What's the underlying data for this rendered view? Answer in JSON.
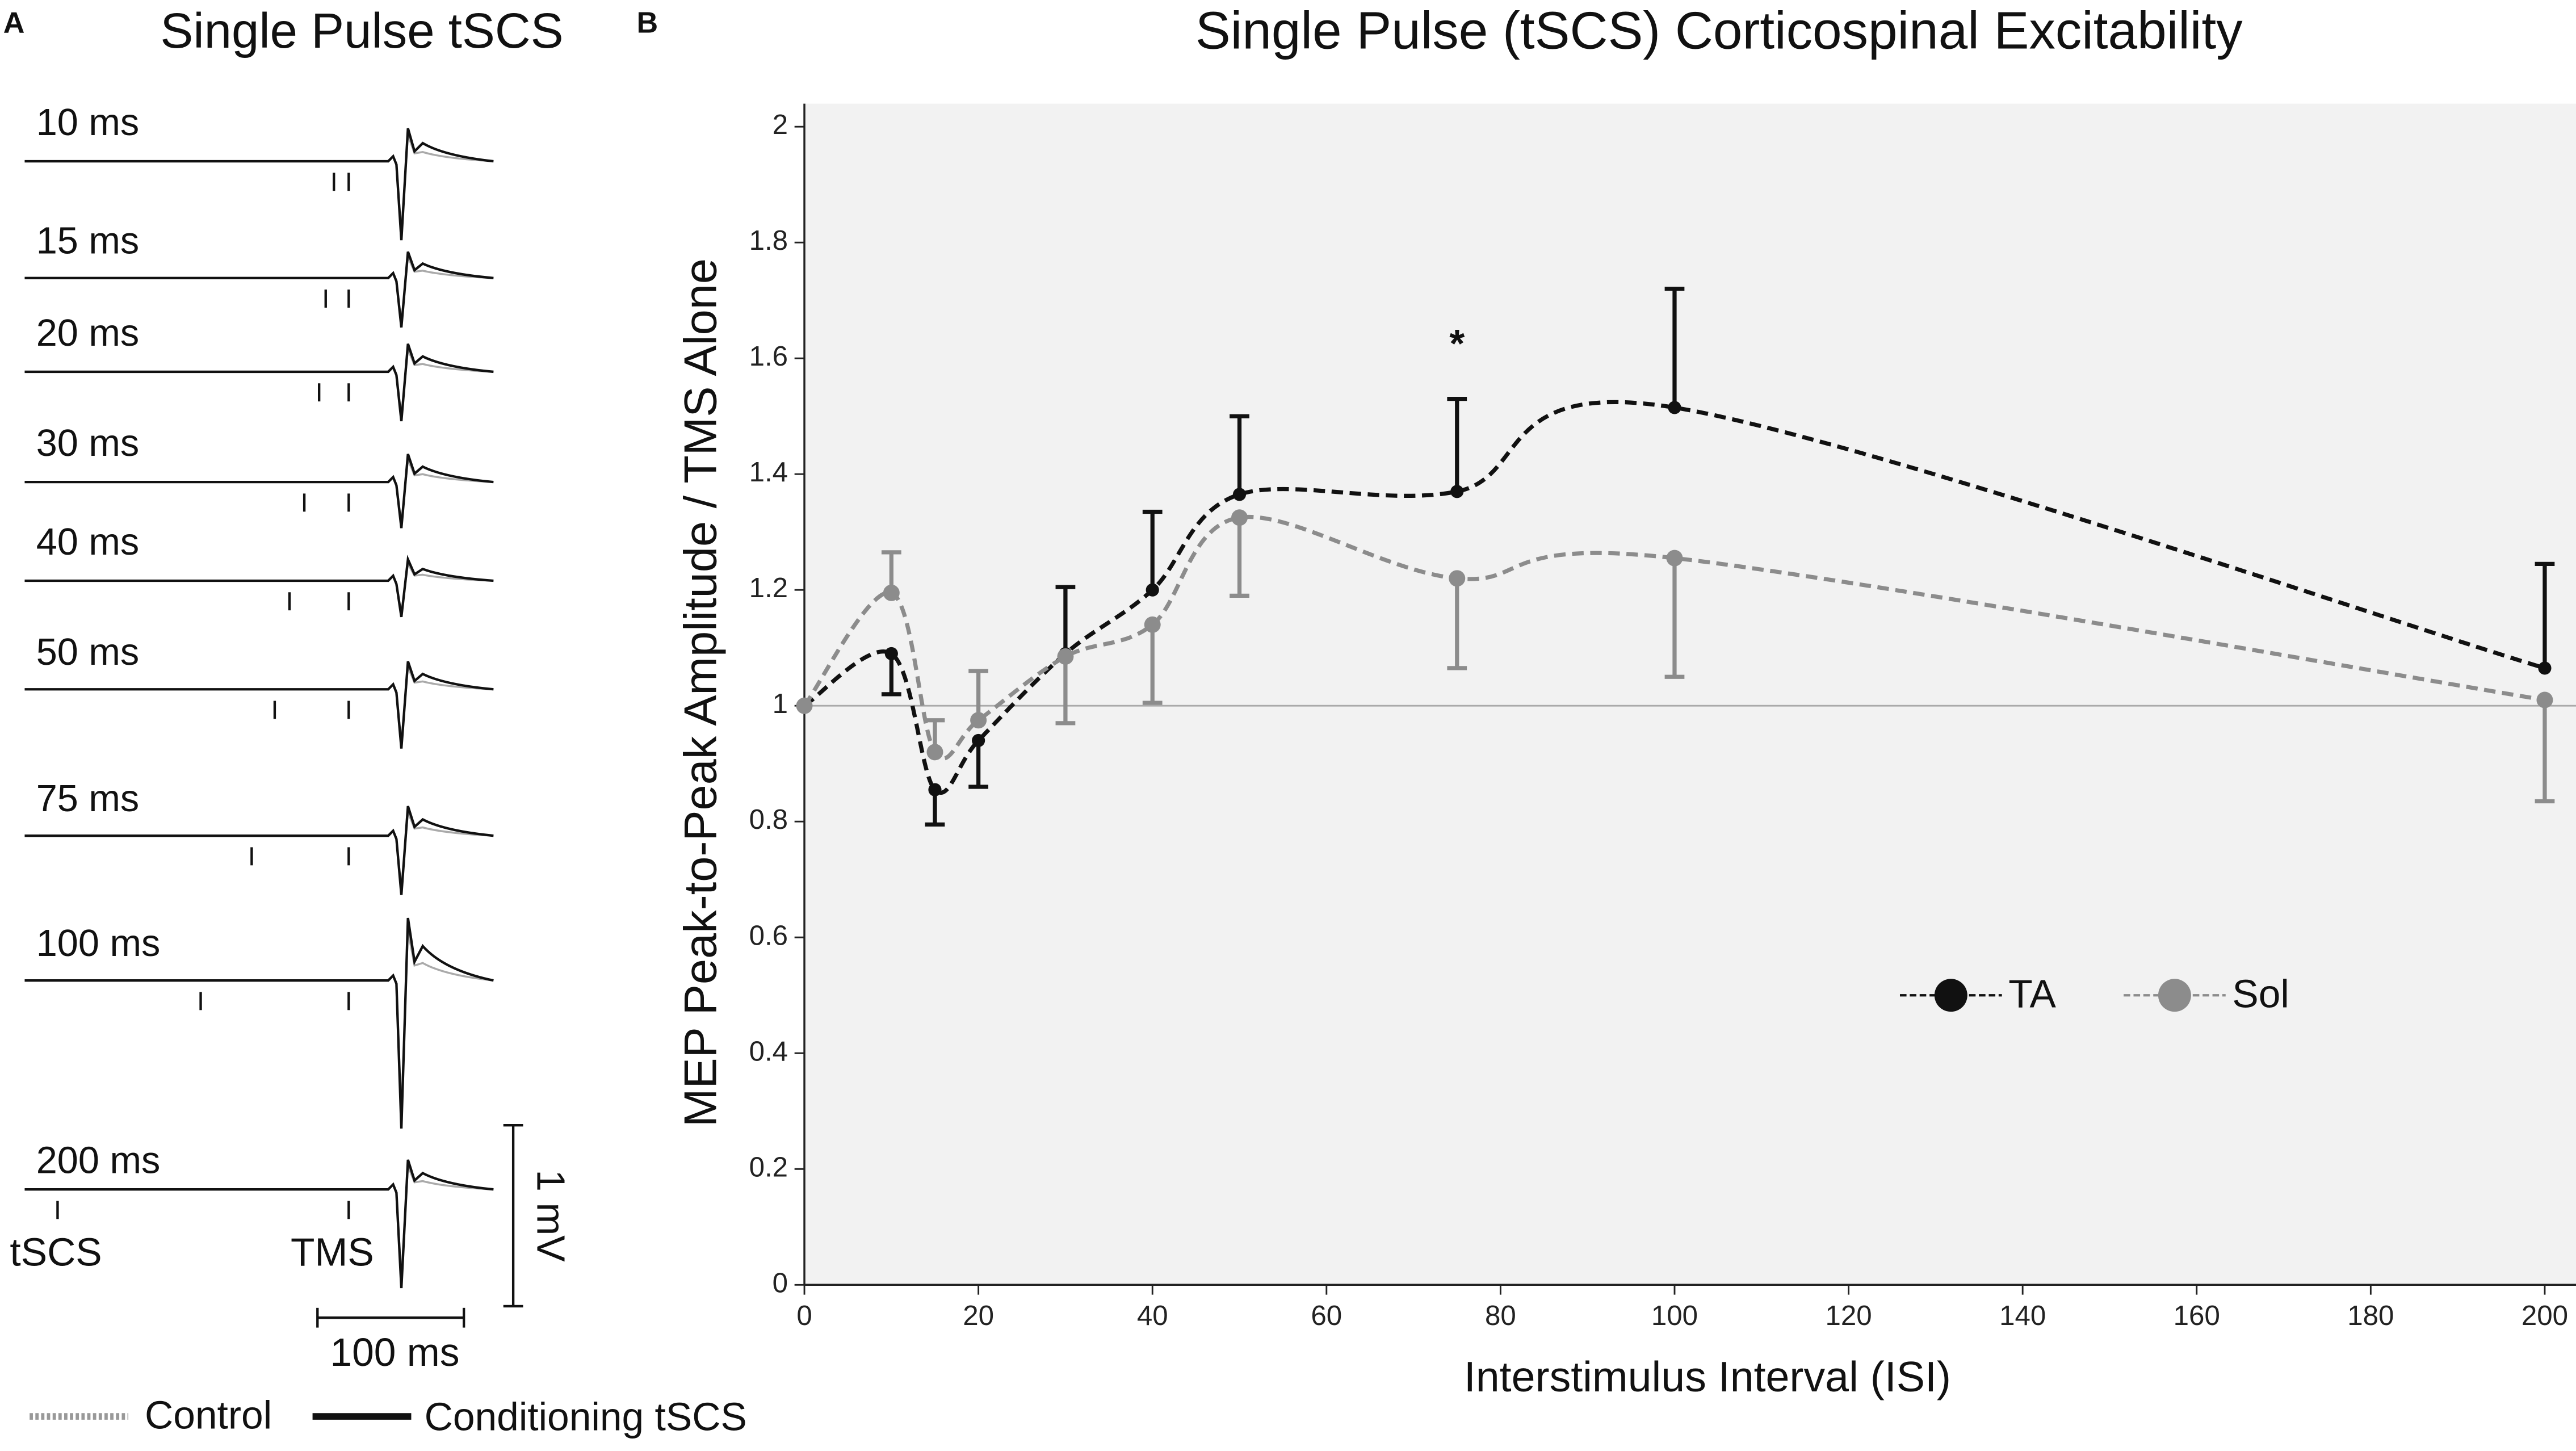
{
  "panel_a": {
    "letter": "A",
    "title": "Single Pulse tSCS",
    "rows": [
      "10 ms",
      "15 ms",
      "20 ms",
      "30 ms",
      "40 ms",
      "50 ms",
      "75 ms",
      "100 ms",
      "200 ms"
    ],
    "stim_labels": [
      "tSCS",
      "TMS"
    ],
    "scale_labels": [
      "1 mV",
      "100 ms"
    ],
    "legend": [
      "Control",
      "Conditioning tSCS"
    ]
  },
  "chart_data": {
    "type": "line",
    "letter": "B",
    "title": "Single Pulse (tSCS) Corticospinal Excitability",
    "xlabel": "Interstimulus Interval (ISI)",
    "ylabel": "MEP Peak-to-Peak Amplitude / TMS Alone",
    "x": [
      0,
      10,
      15,
      20,
      30,
      40,
      50,
      75,
      100,
      200
    ],
    "series": [
      {
        "name": "TA",
        "color": "#111111",
        "values": [
          1,
          1.09,
          0.855,
          0.94,
          1.09,
          1.2,
          1.365,
          1.37,
          1.515,
          1.065
        ],
        "errors": [
          0,
          0.07,
          0.06,
          0.08,
          0.115,
          0.135,
          0.135,
          0.16,
          0.205,
          0.18
        ]
      },
      {
        "name": "Sol",
        "color": "#8c8c8c",
        "values": [
          1,
          1.195,
          0.92,
          0.975,
          1.085,
          1.14,
          1.325,
          1.22,
          1.255,
          1.01
        ],
        "errors": [
          0,
          0.07,
          0.055,
          0.085,
          0.115,
          0.135,
          0.135,
          0.155,
          0.205,
          0.175
        ]
      }
    ],
    "annotations": [
      {
        "text": "*",
        "x": 75,
        "y": 1.62
      }
    ],
    "reference_line": 1,
    "xlim": [
      0,
      200
    ],
    "xticks": [
      0,
      20,
      40,
      60,
      80,
      100,
      120,
      140,
      160,
      180,
      200
    ],
    "ylim": [
      0,
      2
    ],
    "yticks": [
      0,
      0.2,
      0.4,
      0.6,
      0.8,
      1,
      1.2,
      1.4,
      1.6,
      1.8,
      2
    ],
    "legend_position": "lower right"
  }
}
